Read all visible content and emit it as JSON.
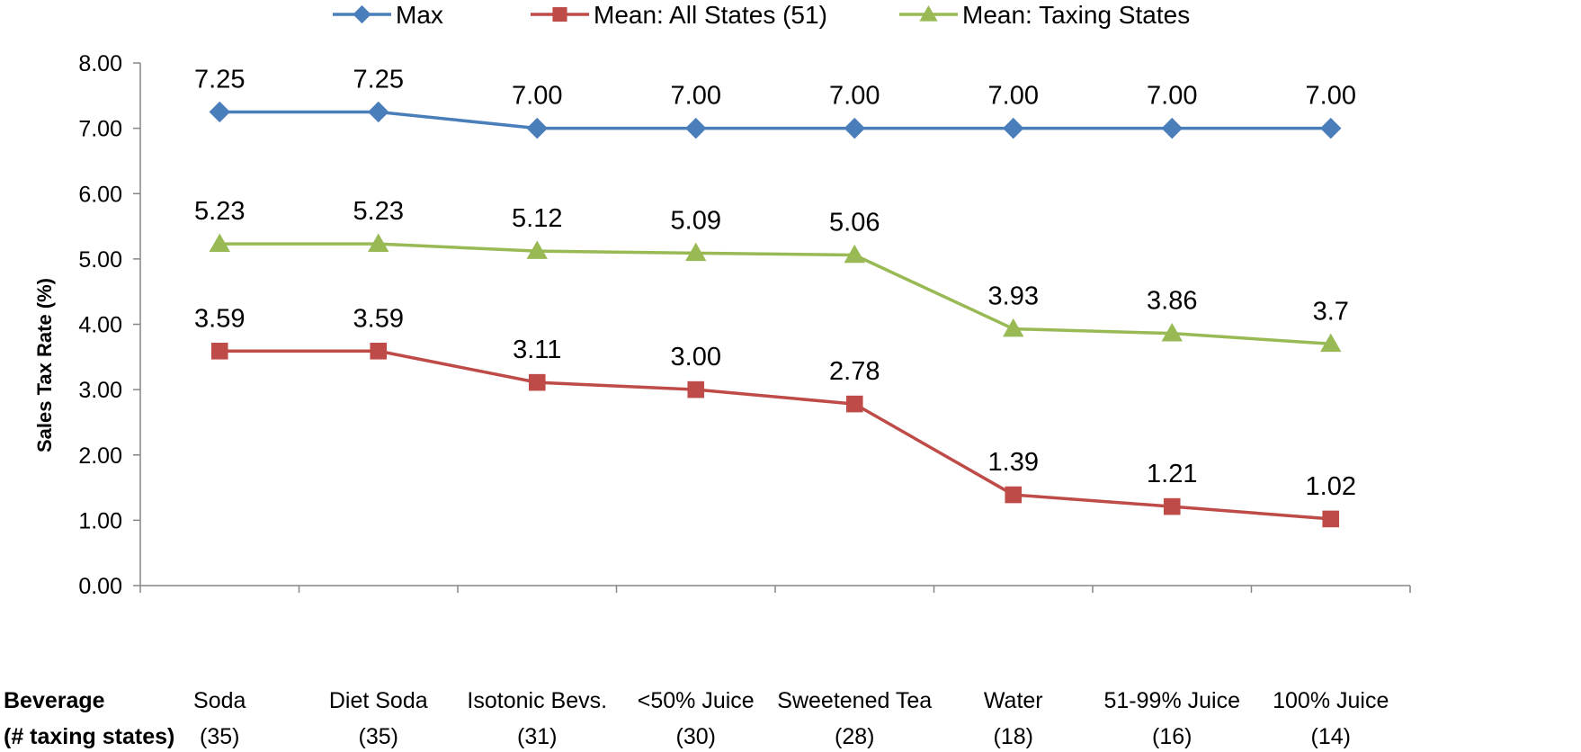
{
  "chart_data": {
    "type": "line",
    "ylabel": "Sales Tax Rate (%)",
    "ylim": [
      0,
      8
    ],
    "yticks": [
      "0.00",
      "1.00",
      "2.00",
      "3.00",
      "4.00",
      "5.00",
      "6.00",
      "7.00",
      "8.00"
    ],
    "x_header": [
      "Beverage",
      "(# taxing states)"
    ],
    "categories": [
      {
        "name": "Soda",
        "count": "(35)"
      },
      {
        "name": "Diet Soda",
        "count": "(35)"
      },
      {
        "name": "Isotonic Bevs.",
        "count": "(31)"
      },
      {
        "name": "<50% Juice",
        "count": "(30)"
      },
      {
        "name": "Sweetened Tea",
        "count": "(28)"
      },
      {
        "name": "Water",
        "count": "(18)"
      },
      {
        "name": "51-99% Juice",
        "count": "(16)"
      },
      {
        "name": "100% Juice",
        "count": "(14)"
      }
    ],
    "legend_position": "top",
    "series": [
      {
        "name": "Max",
        "color": "#4a7ebb",
        "marker": "diamond",
        "values": [
          7.25,
          7.25,
          7.0,
          7.0,
          7.0,
          7.0,
          7.0,
          7.0
        ],
        "labels": [
          "7.25",
          "7.25",
          "7.00",
          "7.00",
          "7.00",
          "7.00",
          "7.00",
          "7.00"
        ]
      },
      {
        "name": "Mean: All States (51)",
        "color": "#be4b48",
        "marker": "square",
        "values": [
          3.59,
          3.59,
          3.11,
          3.0,
          2.78,
          1.39,
          1.21,
          1.02
        ],
        "labels": [
          "3.59",
          "3.59",
          "3.11",
          "3.00",
          "2.78",
          "1.39",
          "1.21",
          "1.02"
        ]
      },
      {
        "name": "Mean: Taxing States",
        "color": "#98b954",
        "marker": "triangle",
        "values": [
          5.23,
          5.23,
          5.12,
          5.09,
          5.06,
          3.93,
          3.86,
          3.7
        ],
        "labels": [
          "5.23",
          "5.23",
          "5.12",
          "5.09",
          "5.06",
          "3.93",
          "3.86",
          "3.7"
        ]
      }
    ]
  }
}
